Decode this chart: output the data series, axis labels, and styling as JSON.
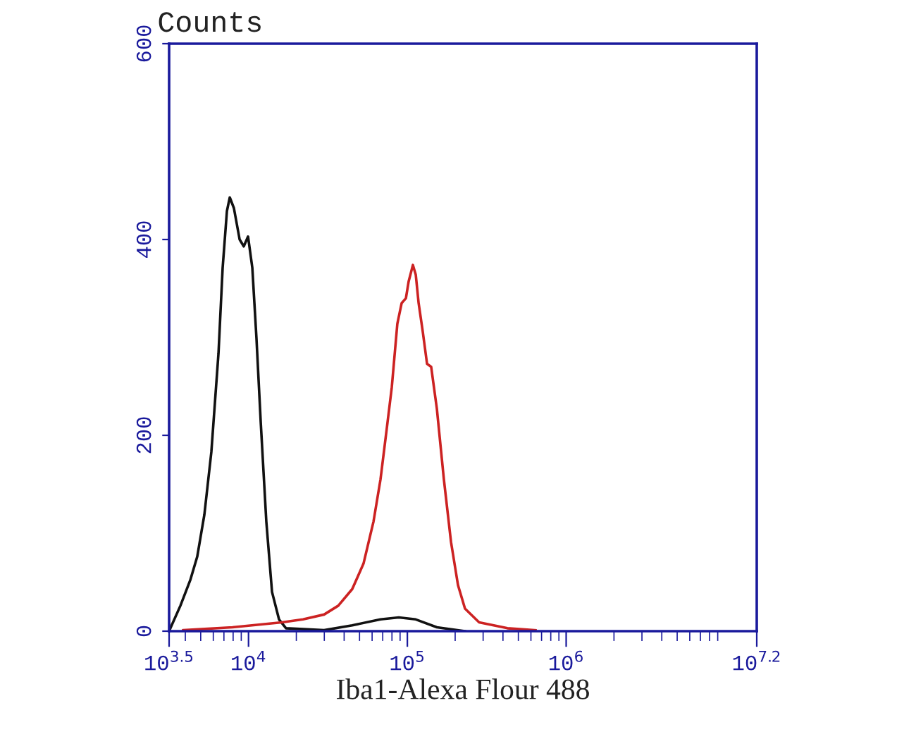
{
  "chart_data": {
    "type": "line",
    "xlabel": "Iba1-Alexa Flour 488",
    "ylabel": "Counts",
    "log": "x",
    "xlim": [
      3162,
      15848932
    ],
    "ylim": [
      0,
      600
    ],
    "xticks": [
      {
        "value": 3162,
        "label": "10$^{3.5}$"
      },
      {
        "value": 10000,
        "label": "10$^{4}$"
      },
      {
        "value": 100000,
        "label": "10$^{5}$"
      },
      {
        "value": 1000000,
        "label": "10$^{6}$"
      },
      {
        "value": 15848932,
        "label": "10$^{7.2}$"
      }
    ],
    "yticks": [
      0,
      200,
      400,
      600
    ],
    "grid": false,
    "marker": "none",
    "line_style": "solid",
    "series": [
      {
        "color": "#111111",
        "x": [
          3162,
          3724,
          4295,
          4753,
          5272,
          5834,
          6471,
          6871,
          7311,
          7621,
          8091,
          8790,
          9333,
          9931,
          10568,
          11220,
          11940,
          12942,
          14060,
          15560,
          17219,
          29923,
          44978,
          67764,
          88308,
          112980,
          153462,
          230675
        ],
        "values": [
          0,
          26,
          52,
          76,
          119,
          183,
          284,
          371,
          429,
          443,
          432,
          400,
          393,
          403,
          371,
          299,
          213,
          112,
          40,
          12,
          3,
          1,
          6,
          12,
          14,
          12,
          4,
          0
        ]
      },
      {
        "color": "#cc2222",
        "x": [
          3882,
          7925,
          16218,
          22029,
          29923,
          36728,
          44978,
          52966,
          61235,
          67764,
          74989,
          79799,
          86497,
          92045,
          97949,
          101859,
          108393,
          112980,
          117761,
          125026,
          133045,
          141254,
          153462,
          169824,
          188365,
          208449,
          230675,
          283139,
          426580,
          641210
        ],
        "values": [
          1,
          4,
          9,
          12,
          17,
          26,
          43,
          69,
          112,
          155,
          213,
          249,
          314,
          335,
          340,
          357,
          374,
          364,
          335,
          306,
          273,
          270,
          227,
          155,
          91,
          47,
          23,
          9,
          3,
          1
        ]
      }
    ]
  }
}
